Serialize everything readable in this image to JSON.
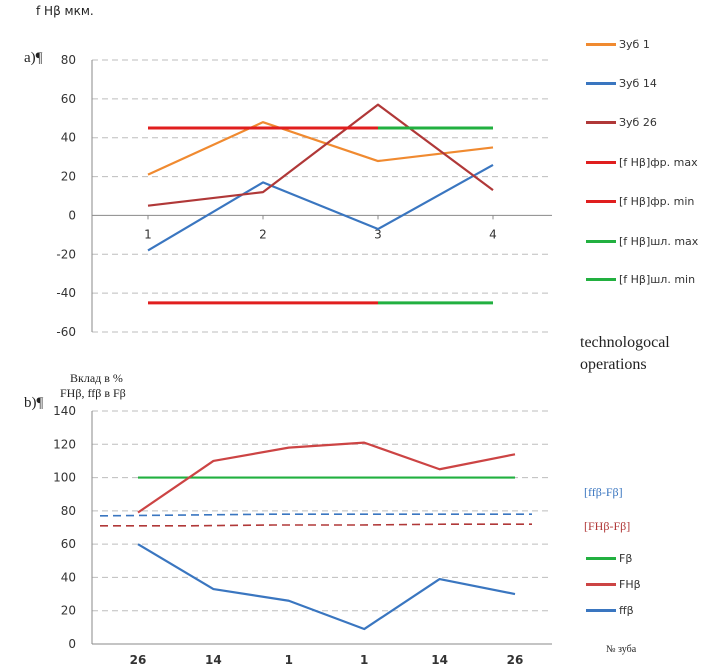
{
  "chart_data": [
    {
      "type": "line",
      "panel_label": "a)¶",
      "ylabel": "f Hβ мкм.",
      "xlabel": "technologocal operations",
      "categories": [
        "1",
        "2",
        "3",
        "4"
      ],
      "ylim": [
        -60,
        80
      ],
      "yticks": [
        "-60",
        "-40",
        "-20",
        "0",
        "20",
        "40",
        "60",
        "80"
      ],
      "grid": "horizontal dashed",
      "legend_position": "right",
      "series": [
        {
          "name": "Зуб 1",
          "color": "#f08a30",
          "x": [
            1,
            2,
            3,
            4
          ],
          "values": [
            21,
            48,
            28,
            35
          ]
        },
        {
          "name": "Зуб 14",
          "color": "#3a76c0",
          "x": [
            1,
            2,
            3,
            4
          ],
          "values": [
            -18,
            17,
            -7,
            26
          ]
        },
        {
          "name": "Зуб 26",
          "color": "#b03838",
          "x": [
            1,
            2,
            3,
            4
          ],
          "values": [
            5,
            12,
            57,
            13
          ]
        },
        {
          "name": "[f Hβ]фр. max",
          "color": "#e01e1e",
          "x": [
            1,
            3
          ],
          "values": [
            45,
            45
          ]
        },
        {
          "name": "[f Hβ]фр. min",
          "color": "#e01e1e",
          "x": [
            1,
            3
          ],
          "values": [
            -45,
            -45
          ]
        },
        {
          "name": "[f Hβ]шл. max",
          "color": "#22b040",
          "x": [
            3,
            4
          ],
          "values": [
            45,
            45
          ]
        },
        {
          "name": "[f Hβ]шл. min",
          "color": "#22b040",
          "x": [
            3,
            4
          ],
          "values": [
            -45,
            -45
          ]
        }
      ]
    },
    {
      "type": "line",
      "panel_label": "b)¶",
      "ylabel_line1": "Вклад в %",
      "ylabel_line2": "FHβ, ffβ в  Fβ",
      "xlabel": "№ зуба",
      "categories": [
        "26",
        "14",
        "1",
        "1",
        "14",
        "26"
      ],
      "ylim": [
        0,
        140
      ],
      "yticks": [
        "0",
        "20",
        "40",
        "60",
        "80",
        "100",
        "120",
        "140"
      ],
      "grid": "horizontal dashed",
      "legend_position": "right",
      "series": [
        {
          "name": "[ffβ-Fβ]",
          "color": "#3a76c0",
          "style": "dashed",
          "values": [
            77,
            77.5,
            78,
            78,
            78,
            78
          ],
          "label_only": true
        },
        {
          "name": "[FHβ-Fβ]",
          "color": "#b03838",
          "style": "dashed",
          "values": [
            71,
            71,
            71.5,
            71.5,
            72,
            72
          ],
          "label_only": true
        },
        {
          "name": "Fβ",
          "color": "#22b040",
          "style": "solid",
          "values": [
            100,
            100,
            100,
            100,
            100,
            100
          ]
        },
        {
          "name": "FHβ",
          "color": "#cc4444",
          "style": "solid",
          "values": [
            79,
            110,
            118,
            121,
            105,
            114
          ]
        },
        {
          "name": "ffβ",
          "color": "#3a76c0",
          "style": "solid",
          "values": [
            60,
            33,
            26,
            9,
            39,
            30
          ]
        }
      ]
    }
  ]
}
